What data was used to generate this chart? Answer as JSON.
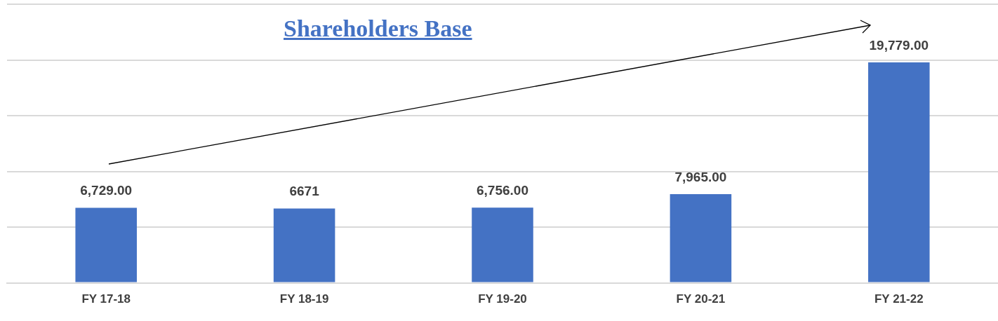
{
  "chart_data": {
    "type": "bar",
    "title": "Shareholders Base",
    "categories": [
      "FY 17-18",
      "FY 18-19",
      "FY 19-20",
      "FY 20-21",
      "FY 21-22"
    ],
    "values": [
      6729,
      6671,
      6756,
      7965,
      19779
    ],
    "value_labels": [
      "6,729.00",
      "6671",
      "6,756.00",
      "7,965.00",
      "19,779.00"
    ],
    "color": "#4472c4",
    "ylim": [
      0,
      25000
    ],
    "yticks": [
      {
        "value": 0,
        "label": null
      },
      {
        "value": 5000,
        "label": null
      },
      {
        "value": 10000,
        "label": null
      },
      {
        "value": 15000,
        "label": null
      },
      {
        "value": 20000,
        "label": null
      },
      {
        "value": 25000,
        "label": null
      }
    ],
    "grid": "y",
    "tick_labels": "x",
    "legend": false
  }
}
